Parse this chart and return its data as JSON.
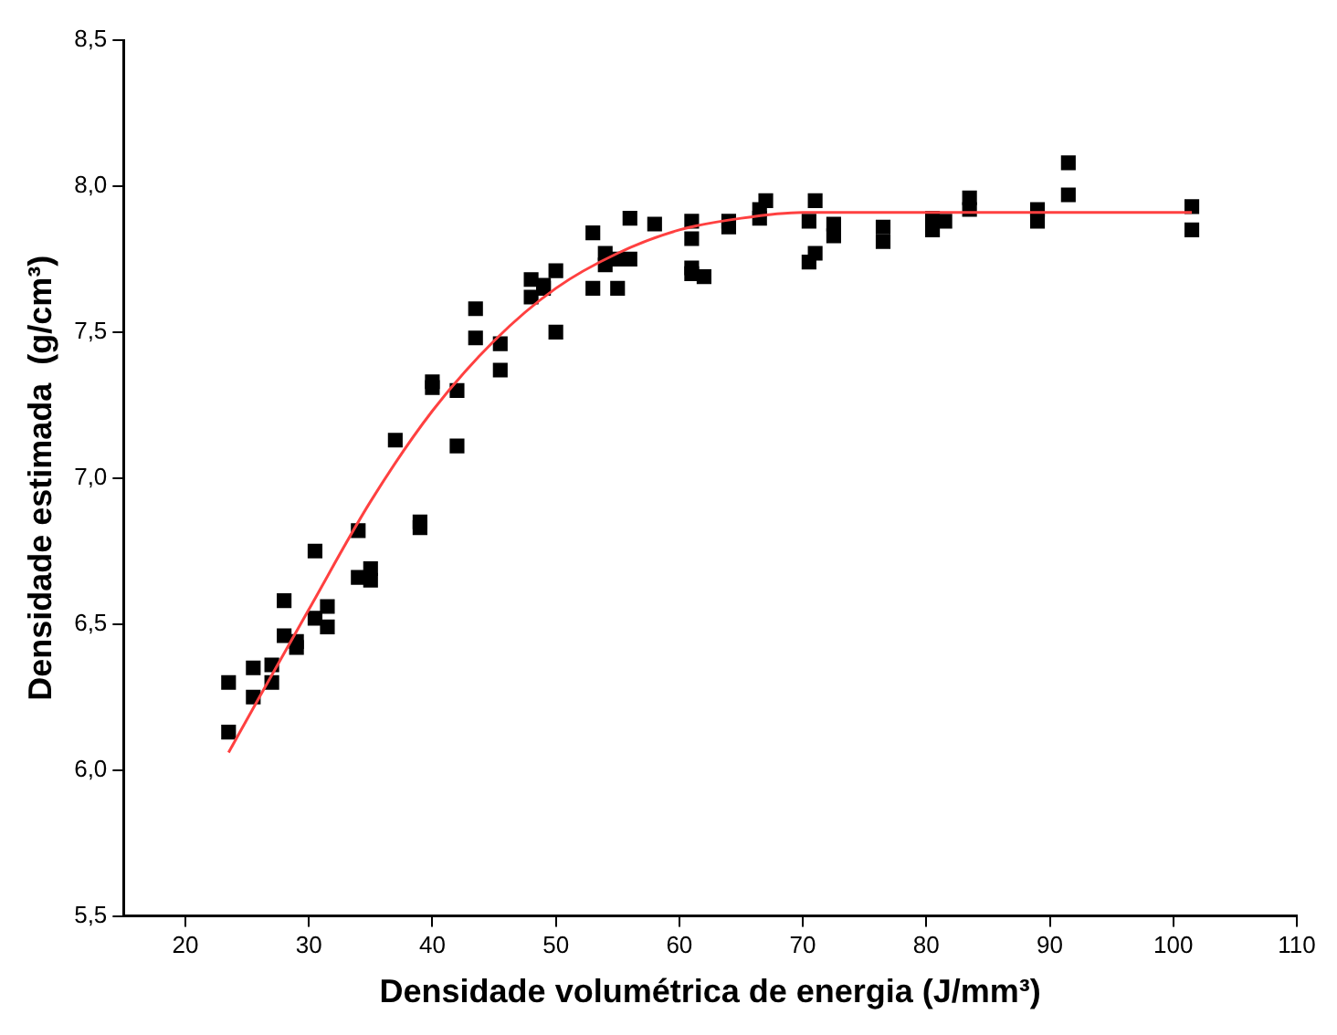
{
  "chart_data": {
    "type": "scatter",
    "xlabel": "Densidade volumétrica de energia (J/mm³)",
    "ylabel": "Densidade estimada  (g/cm³)",
    "xlim": [
      15,
      110
    ],
    "xticks": [
      20,
      30,
      40,
      50,
      60,
      70,
      80,
      90,
      100,
      110
    ],
    "ylim": [
      5.5,
      8.5
    ],
    "yticks": [
      {
        "value": 5.5,
        "label": "5,5"
      },
      {
        "value": 6,
        "label": "6,0"
      },
      {
        "value": 6.5,
        "label": "6,5"
      },
      {
        "value": 7,
        "label": "7,0"
      },
      {
        "value": 7.5,
        "label": "7,5"
      },
      {
        "value": 8,
        "label": "8,0"
      },
      {
        "value": 8.5,
        "label": "8,5"
      }
    ],
    "grid": false,
    "legend": false,
    "marker": "square",
    "series": [
      {
        "type": "scatter",
        "color": "#000000",
        "x": [
          23.5,
          23.5,
          25.5,
          25.5,
          27,
          27,
          28,
          28,
          29,
          29,
          30.5,
          30.5,
          31.5,
          31.5,
          34,
          34,
          35,
          35,
          37,
          39,
          39,
          40,
          40,
          42,
          42,
          43.5,
          43.5,
          45.5,
          45.5,
          48,
          48,
          49,
          49,
          50,
          50,
          53,
          53,
          54,
          54,
          55,
          55,
          56,
          56,
          58,
          61,
          61,
          61,
          61,
          62,
          64,
          64,
          66.5,
          66.5,
          67,
          70.5,
          70.5,
          71,
          71,
          72.5,
          72.5,
          76.5,
          76.5,
          80.5,
          80.5,
          81.5,
          83.5,
          83.5,
          89,
          89,
          91.5,
          91.5,
          101.5,
          101.5
        ],
        "values": [
          6.3,
          6.13,
          6.35,
          6.25,
          6.36,
          6.3,
          6.58,
          6.46,
          6.44,
          6.42,
          6.75,
          6.52,
          6.56,
          6.49,
          6.82,
          6.66,
          6.69,
          6.65,
          7.13,
          6.85,
          6.83,
          7.33,
          7.31,
          7.3,
          7.11,
          7.58,
          7.48,
          7.46,
          7.37,
          7.68,
          7.62,
          7.66,
          7.65,
          7.71,
          7.5,
          7.84,
          7.65,
          7.77,
          7.73,
          7.75,
          7.65,
          7.89,
          7.75,
          7.87,
          7.88,
          7.82,
          7.72,
          7.7,
          7.69,
          7.88,
          7.86,
          7.92,
          7.89,
          7.95,
          7.88,
          7.74,
          7.95,
          7.77,
          7.87,
          7.83,
          7.86,
          7.81,
          7.85,
          7.89,
          7.88,
          7.96,
          7.92,
          7.92,
          7.88,
          8.08,
          7.97,
          7.93,
          7.85
        ]
      },
      {
        "type": "line",
        "color": "#ff4040",
        "marker": "none",
        "line_style": "solid",
        "x": [
          23.5,
          26,
          30,
          35,
          40,
          45,
          50,
          55,
          60,
          65,
          70,
          80,
          90,
          101.5
        ],
        "values": [
          6.06,
          6.25,
          6.55,
          6.92,
          7.23,
          7.47,
          7.65,
          7.77,
          7.85,
          7.89,
          7.91,
          7.91,
          7.91,
          7.91
        ]
      }
    ]
  }
}
